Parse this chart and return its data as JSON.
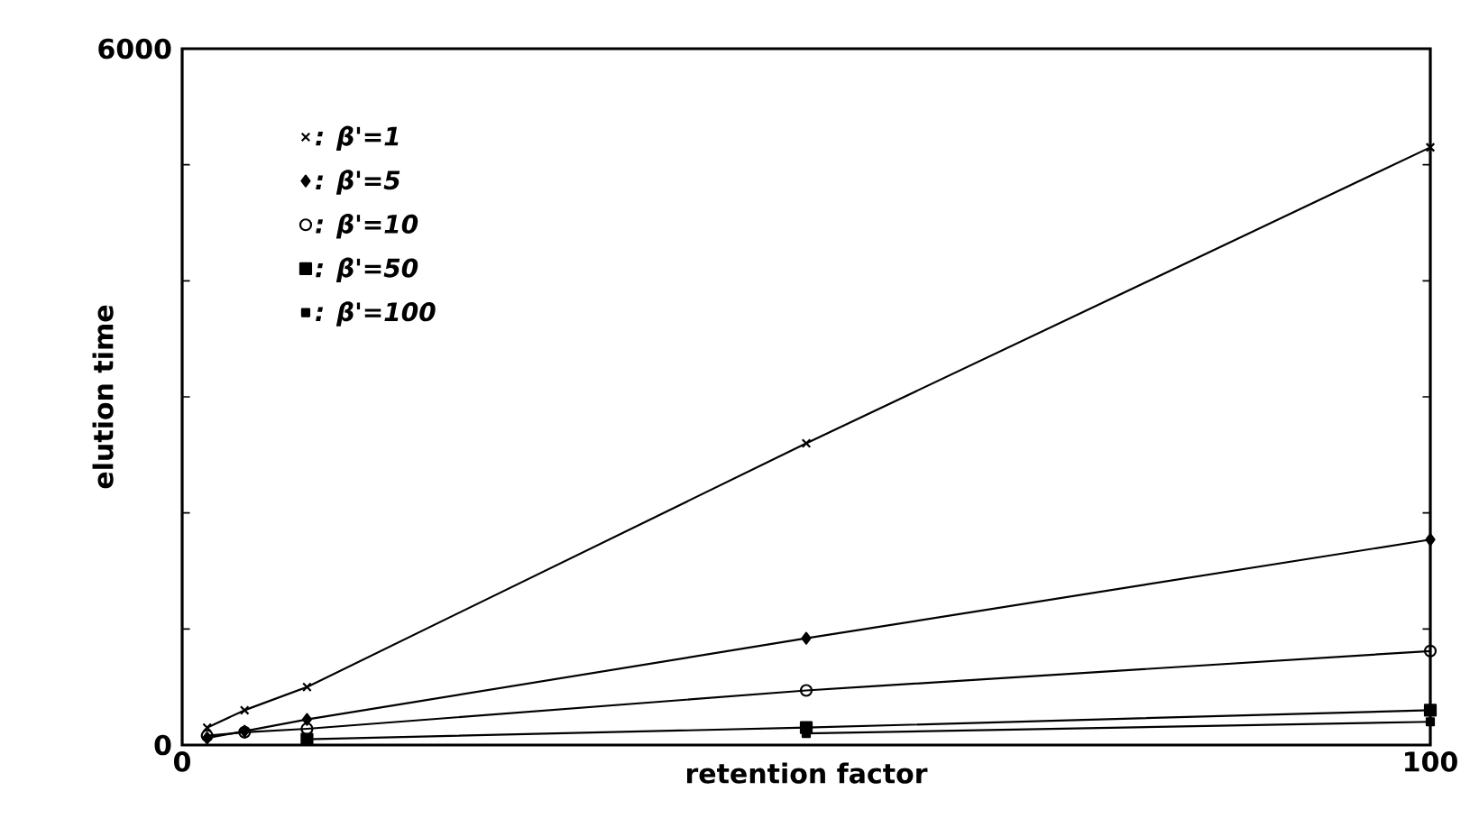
{
  "chart_data": {
    "type": "line",
    "xlabel": "retention factor",
    "ylabel": "elution time",
    "x": [
      2,
      5,
      10,
      50,
      100
    ],
    "xlim": [
      0,
      100
    ],
    "ylim": [
      0,
      6000
    ],
    "xticks": [
      0,
      100
    ],
    "yticks": [
      0,
      {
        "value": 1000,
        "label": null
      },
      {
        "value": 2000,
        "label": null
      },
      {
        "value": 3000,
        "label": null
      },
      {
        "value": 4000,
        "label": null
      },
      {
        "value": 5000,
        "label": null
      },
      6000
    ],
    "legend": "top left",
    "grid": false,
    "line_style": "solid",
    "series": [
      {
        "name": ": β'=1",
        "color": "#000000",
        "marker": "cross",
        "values": [
          150,
          300,
          500,
          2600,
          5150
        ]
      },
      {
        "name": ": β'=5",
        "color": "#000000",
        "marker": "diamond",
        "values": [
          60,
          120,
          220,
          920,
          1770
        ]
      },
      {
        "name": ": β'=10",
        "color": "#000000",
        "marker": "circle",
        "values": [
          80,
          110,
          140,
          470,
          810
        ]
      },
      {
        "name": ": β'=50",
        "color": "#000000",
        "marker": "square",
        "values": [
          null,
          null,
          50,
          150,
          300
        ]
      },
      {
        "name": ": β'=100",
        "color": "#000000",
        "marker": "square",
        "values": [
          null,
          null,
          null,
          100,
          200
        ]
      }
    ]
  }
}
